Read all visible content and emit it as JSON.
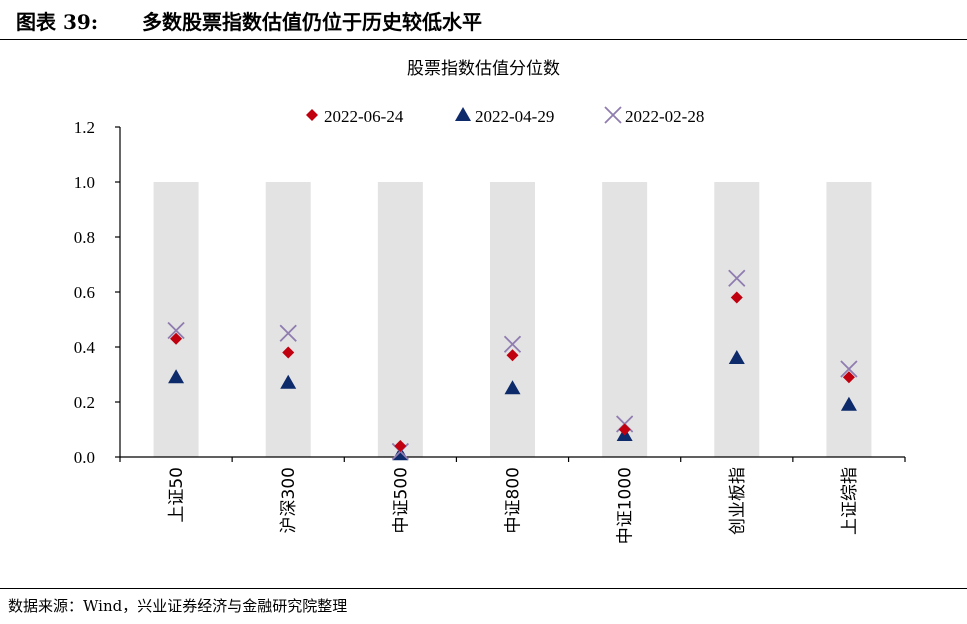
{
  "figure": {
    "label": "图表 39:",
    "title": "多数股票指数估值仍位于历史较低水平"
  },
  "source": "数据来源：Wind，兴业证券经济与金融研究院整理",
  "colors": {
    "series_0": "#C0000F",
    "series_1": "#0D2A6B",
    "series_2": "#8F7CB0",
    "background_bar": "#E3E3E3"
  },
  "chart_data": {
    "type": "scatter",
    "title": "股票指数估值分位数",
    "categories": [
      "上证50",
      "沪深300",
      "中证500",
      "中证800",
      "中证1000",
      "创业板指",
      "上证综指"
    ],
    "ylim": [
      0.0,
      1.2
    ],
    "yticks": [
      "0.0",
      "0.2",
      "0.4",
      "0.6",
      "0.8",
      "1.0",
      "1.2"
    ],
    "background_bars": [
      1.0,
      1.0,
      1.0,
      1.0,
      1.0,
      1.0,
      1.0
    ],
    "legend_position": "top",
    "grid": false,
    "series": [
      {
        "name": "2022-06-24",
        "marker": "diamond",
        "values": [
          0.43,
          0.38,
          0.04,
          0.37,
          0.1,
          0.58,
          0.29
        ]
      },
      {
        "name": "2022-04-29",
        "marker": "triangle",
        "values": [
          0.29,
          0.27,
          0.01,
          0.25,
          0.08,
          0.36,
          0.19
        ]
      },
      {
        "name": "2022-02-28",
        "marker": "x",
        "values": [
          0.46,
          0.45,
          0.02,
          0.41,
          0.12,
          0.65,
          0.32
        ]
      }
    ]
  }
}
